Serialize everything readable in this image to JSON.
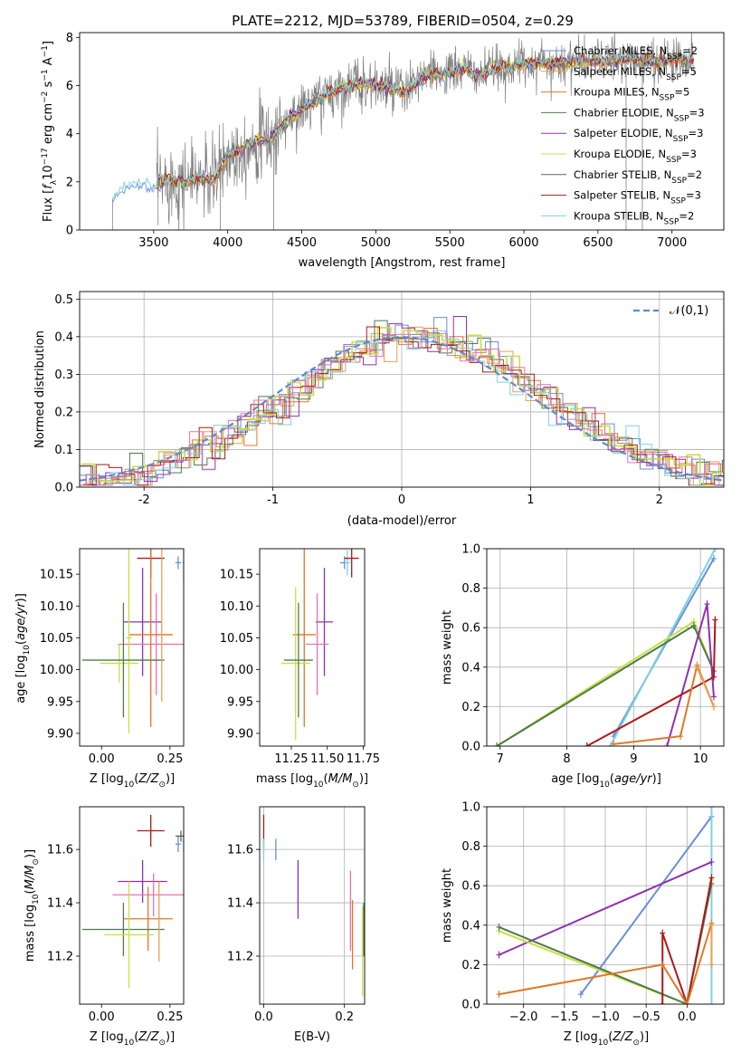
{
  "title": "PLATE=2212, MJD=53789, FIBERID=0504, z=0.29",
  "colors": {
    "chabrier_miles": "#6a8fd8",
    "salpeter_miles": "#e8a050",
    "kroupa_miles": "#e07828",
    "chabrier_elodie": "#4e7a4e",
    "salpeter_elodie": "#9030b0",
    "kroupa_elodie": "#c8e040",
    "chabrier_stelib": "#606060",
    "salpeter_stelib": "#b01818",
    "kroupa_stelib": "#7dd3e0",
    "pink": "#e870b0",
    "data": "#808080",
    "gaussian": "#5b8bd6"
  },
  "chart_data": [
    {
      "id": "spectrum",
      "type": "line",
      "title": "PLATE=2212, MJD=53789, FIBERID=0504, z=0.29",
      "xlabel": "wavelength [Angstrom, rest frame]",
      "ylabel": "Flux [f_λ 10^-17 erg cm^-2 s^-1 A^-1]",
      "xlim": [
        3000,
        7350
      ],
      "ylim": [
        0,
        8.2
      ],
      "xticks": [
        3500,
        4000,
        4500,
        5000,
        5500,
        6000,
        6500,
        7000
      ],
      "yticks": [
        0,
        2,
        4,
        6,
        8
      ],
      "legend_position": "top-right",
      "legend": [
        {
          "label": "Chabrier MILES, N_SSP=2",
          "color": "#6a8fd8"
        },
        {
          "label": "Salpeter MILES, N_SSP=5",
          "color": "#e8a050"
        },
        {
          "label": "Kroupa MILES, N_SSP=5",
          "color": "#e07828"
        },
        {
          "label": "Chabrier ELODIE, N_SSP=3",
          "color": "#4e7a4e"
        },
        {
          "label": "Salpeter ELODIE, N_SSP=3",
          "color": "#9030b0"
        },
        {
          "label": "Kroupa ELODIE, N_SSP=3",
          "color": "#c8e040"
        },
        {
          "label": "Chabrier STELIB, N_SSP=2",
          "color": "#606060"
        },
        {
          "label": "Salpeter STELIB, N_SSP=3",
          "color": "#b01818"
        },
        {
          "label": "Kroupa STELIB, N_SSP=2",
          "color": "#7dd3e0"
        }
      ],
      "continuum": [
        [
          3220,
          1.3
        ],
        [
          3300,
          1.75
        ],
        [
          3400,
          1.95
        ],
        [
          3500,
          1.8
        ],
        [
          3600,
          2.1
        ],
        [
          3700,
          2.0
        ],
        [
          3800,
          2.2
        ],
        [
          3900,
          2.0
        ],
        [
          4000,
          3.1
        ],
        [
          4100,
          3.4
        ],
        [
          4200,
          3.7
        ],
        [
          4300,
          3.8
        ],
        [
          4400,
          4.6
        ],
        [
          4500,
          5.0
        ],
        [
          4600,
          5.4
        ],
        [
          4700,
          5.7
        ],
        [
          4800,
          6.0
        ],
        [
          4900,
          6.1
        ],
        [
          5000,
          6.0
        ],
        [
          5100,
          5.9
        ],
        [
          5200,
          5.7
        ],
        [
          5300,
          6.3
        ],
        [
          5400,
          6.5
        ],
        [
          5500,
          6.5
        ],
        [
          5600,
          6.7
        ],
        [
          5700,
          6.4
        ],
        [
          5800,
          6.7
        ],
        [
          5900,
          6.8
        ],
        [
          6000,
          6.9
        ],
        [
          6100,
          7.0
        ],
        [
          6200,
          6.9
        ],
        [
          6300,
          7.0
        ],
        [
          6500,
          7.0
        ],
        [
          6700,
          7.1
        ],
        [
          6900,
          7.0
        ],
        [
          7100,
          7.1
        ]
      ]
    },
    {
      "id": "residuals",
      "type": "line",
      "xlabel": "(data-model)/error",
      "ylabel": "Normed distribution",
      "xlim": [
        -2.5,
        2.5
      ],
      "ylim": [
        0,
        0.52
      ],
      "xticks": [
        -2,
        -1,
        0,
        1,
        2
      ],
      "yticks": [
        0.0,
        0.1,
        0.2,
        0.3,
        0.4,
        0.5
      ],
      "grid": true,
      "legend_position": "top-right",
      "legend": [
        {
          "label": "𝒩(0,1)",
          "style": "dashed",
          "color": "#5b8bd6"
        }
      ],
      "bin_width": 0.1
    },
    {
      "id": "age_vs_Z",
      "type": "scatter",
      "xlabel": "Z [log10(Z/Z⊙)]",
      "ylabel": "age [log10(age/yr)]",
      "xlim": [
        -0.08,
        0.3
      ],
      "ylim": [
        9.88,
        10.19
      ],
      "xticks": [
        0.0,
        0.25
      ],
      "yticks": [
        9.9,
        9.95,
        10.0,
        10.05,
        10.1,
        10.15
      ],
      "points": [
        {
          "x": 0.28,
          "y": 10.168,
          "xerr": 0.01,
          "yerr": 0.01,
          "color": "#6a8fd8"
        },
        {
          "x": 0.3,
          "y": 10.168,
          "xerr": 0.005,
          "yerr": 0.03,
          "color": "#7dd3e0"
        },
        {
          "x": 0.18,
          "y": 10.175,
          "xerr": 0.05,
          "yerr": 0.03,
          "color": "#b01818"
        },
        {
          "x": 0.15,
          "y": 10.075,
          "xerr": 0.07,
          "yerr": 0.085,
          "color": "#9030b0"
        },
        {
          "x": 0.2,
          "y": 10.04,
          "xerr": 0.14,
          "yerr": 0.08,
          "color": "#e870b0"
        },
        {
          "x": 0.18,
          "y": 10.055,
          "xerr": 0.08,
          "yerr": 0.145,
          "color": "#e07828"
        },
        {
          "x": 0.1,
          "y": 10.05,
          "xerr": 0.01,
          "yerr": 0.15,
          "color": "#c8e040"
        },
        {
          "x": 0.065,
          "y": 10.01,
          "xerr": 0.07,
          "yerr": 0.03,
          "color": "#c8e040"
        },
        {
          "x": 0.08,
          "y": 10.015,
          "xerr": 0.15,
          "yerr": 0.09,
          "color": "#4e7a4e"
        },
        {
          "x": 0.22,
          "y": 10.07,
          "xerr": 0.0,
          "yerr": 0.12,
          "color": "#e8a050"
        }
      ]
    },
    {
      "id": "age_vs_mass",
      "type": "scatter",
      "xlabel": "mass [log10(M/M⊙)]",
      "xlim": [
        11.03,
        11.76
      ],
      "ylim": [
        9.88,
        10.19
      ],
      "xticks": [
        11.25,
        11.5,
        11.75
      ],
      "xtick_labels": [
        "11.25",
        "11.50",
        "11.75"
      ],
      "yticks": [
        9.9,
        9.95,
        10.0,
        10.05,
        10.1,
        10.15
      ],
      "points": [
        {
          "x": 11.62,
          "y": 10.168,
          "xerr": 0.03,
          "yerr": 0.01,
          "color": "#6a8fd8"
        },
        {
          "x": 11.64,
          "y": 10.168,
          "xerr": 0.02,
          "yerr": 0.02,
          "color": "#7dd3e0"
        },
        {
          "x": 11.67,
          "y": 10.175,
          "xerr": 0.05,
          "yerr": 0.03,
          "color": "#b01818"
        },
        {
          "x": 11.48,
          "y": 10.075,
          "xerr": 0.06,
          "yerr": 0.085,
          "color": "#9030b0"
        },
        {
          "x": 11.43,
          "y": 10.04,
          "xerr": 0.08,
          "yerr": 0.08,
          "color": "#e870b0"
        },
        {
          "x": 11.34,
          "y": 10.055,
          "xerr": 0.08,
          "yerr": 0.145,
          "color": "#e07828"
        },
        {
          "x": 11.28,
          "y": 10.01,
          "xerr": 0.1,
          "yerr": 0.12,
          "color": "#c8e040"
        },
        {
          "x": 11.3,
          "y": 10.015,
          "xerr": 0.1,
          "yerr": 0.09,
          "color": "#4e7a4e"
        }
      ]
    },
    {
      "id": "weight_vs_age",
      "type": "line",
      "xlabel": "age [log10(age/yr)]",
      "ylabel": "mass weight",
      "xlim": [
        6.8,
        10.35
      ],
      "ylim": [
        0,
        1
      ],
      "xticks": [
        7,
        8,
        9,
        10
      ],
      "yticks": [
        0.0,
        0.2,
        0.4,
        0.6,
        0.8,
        1.0
      ],
      "grid": true,
      "series": [
        {
          "color": "#6a8fd8",
          "x": [
            8.7,
            10.2
          ],
          "y": [
            0.05,
            0.95
          ]
        },
        {
          "color": "#7dd3e0",
          "x": [
            8.65,
            10.22
          ],
          "y": [
            0.0,
            1.0
          ]
        },
        {
          "color": "#c8e040",
          "x": [
            6.95,
            9.9,
            10.2
          ],
          "y": [
            0.0,
            0.63,
            0.38
          ]
        },
        {
          "color": "#4e7a4e",
          "x": [
            6.95,
            9.9,
            10.2
          ],
          "y": [
            0.0,
            0.61,
            0.38
          ]
        },
        {
          "color": "#9030b0",
          "x": [
            9.5,
            10.1,
            10.2
          ],
          "y": [
            0.0,
            0.72,
            0.25
          ]
        },
        {
          "color": "#b01818",
          "x": [
            8.3,
            10.2,
            10.22
          ],
          "y": [
            0.0,
            0.35,
            0.64
          ]
        },
        {
          "color": "#e07828",
          "x": [
            8.7,
            9.7,
            9.95,
            10.2
          ],
          "y": [
            0.01,
            0.05,
            0.41,
            0.2
          ]
        },
        {
          "color": "#e8a050",
          "x": [
            9.95,
            10.2
          ],
          "y": [
            0.4,
            0.2
          ]
        }
      ]
    },
    {
      "id": "mass_vs_Z",
      "type": "scatter",
      "xlabel": "Z [log10(Z/Z⊙)]",
      "ylabel": "mass [log10(M/M⊙)]",
      "xlim": [
        -0.08,
        0.3
      ],
      "ylim": [
        11.02,
        11.76
      ],
      "xticks": [
        0.0,
        0.25
      ],
      "yticks": [
        11.2,
        11.4,
        11.6
      ],
      "points": [
        {
          "x": 0.28,
          "y": 11.62,
          "xerr": 0.01,
          "yerr": 0.03,
          "color": "#6a8fd8"
        },
        {
          "x": 0.3,
          "y": 11.63,
          "xerr": 0.005,
          "yerr": 0.04,
          "color": "#7dd3e0"
        },
        {
          "x": 0.18,
          "y": 11.67,
          "xerr": 0.05,
          "yerr": 0.06,
          "color": "#b01818"
        },
        {
          "x": 0.29,
          "y": 11.65,
          "xerr": 0.02,
          "yerr": 0.02,
          "color": "#606060"
        },
        {
          "x": 0.15,
          "y": 11.48,
          "xerr": 0.09,
          "yerr": 0.08,
          "color": "#9030b0"
        },
        {
          "x": 0.19,
          "y": 11.43,
          "xerr": 0.15,
          "yerr": 0.08,
          "color": "#e870b0"
        },
        {
          "x": 0.17,
          "y": 11.34,
          "xerr": 0.09,
          "yerr": 0.12,
          "color": "#e07828"
        },
        {
          "x": 0.08,
          "y": 11.3,
          "xerr": 0.15,
          "yerr": 0.1,
          "color": "#4e7a4e"
        },
        {
          "x": 0.1,
          "y": 11.28,
          "xerr": 0.09,
          "yerr": 0.2,
          "color": "#c8e040"
        },
        {
          "x": 0.21,
          "y": 11.33,
          "xerr": 0.0,
          "yerr": 0.15,
          "color": "#e8a050"
        }
      ]
    },
    {
      "id": "ebv",
      "type": "scatter",
      "xlabel": "E(B-V)",
      "xlim": [
        -0.01,
        0.25
      ],
      "ylim": [
        11.02,
        11.76
      ],
      "xticks": [
        0.0,
        0.2
      ],
      "yticks": [
        11.2,
        11.4,
        11.6
      ],
      "grid": true,
      "points": [
        {
          "x": 0.0,
          "y": 11.67,
          "yerr": 0.06,
          "color": "#b01818"
        },
        {
          "x": 0.0,
          "y": 11.6,
          "yerr": 0.04,
          "color": "#7dd3e0"
        },
        {
          "x": 0.03,
          "y": 11.6,
          "yerr": 0.04,
          "color": "#6a8fd8"
        },
        {
          "x": 0.085,
          "y": 11.45,
          "yerr": 0.11,
          "color": "#9030b0"
        },
        {
          "x": 0.215,
          "y": 11.37,
          "yerr": 0.15,
          "color": "#e870b0"
        },
        {
          "x": 0.22,
          "y": 11.28,
          "yerr": 0.13,
          "color": "#e07828"
        },
        {
          "x": 0.245,
          "y": 11.22,
          "yerr": 0.17,
          "color": "#c8e040"
        },
        {
          "x": 0.248,
          "y": 11.3,
          "yerr": 0.1,
          "color": "#4e7a4e"
        }
      ]
    },
    {
      "id": "weight_vs_Z",
      "type": "line",
      "xlabel": "Z [log10(Z/Z⊙)]",
      "ylabel": "mass weight",
      "xlim": [
        -2.45,
        0.45
      ],
      "ylim": [
        0,
        1
      ],
      "xticks": [
        -2.0,
        -1.5,
        -1.0,
        -0.5,
        0.0
      ],
      "yticks": [
        0.0,
        0.2,
        0.4,
        0.6,
        0.8,
        1.0
      ],
      "grid": true,
      "series": [
        {
          "color": "#6a8fd8",
          "x": [
            -1.3,
            0.3
          ],
          "y": [
            0.05,
            0.95
          ]
        },
        {
          "color": "#7dd3e0",
          "x": [
            0.3,
            0.3
          ],
          "y": [
            0.0,
            1.0
          ]
        },
        {
          "color": "#9030b0",
          "x": [
            -2.3,
            0.3
          ],
          "y": [
            0.25,
            0.72
          ]
        },
        {
          "color": "#c8e040",
          "x": [
            -2.3,
            0.0,
            0.3
          ],
          "y": [
            0.37,
            0.0,
            0.63
          ]
        },
        {
          "color": "#4e7a4e",
          "x": [
            -2.3,
            0.0,
            0.3
          ],
          "y": [
            0.39,
            0.0,
            0.61
          ]
        },
        {
          "color": "#b01818",
          "x": [
            -0.3,
            -0.3,
            0.0,
            0.3
          ],
          "y": [
            0.0,
            0.36,
            0.0,
            0.64
          ]
        },
        {
          "color": "#e07828",
          "x": [
            -2.3,
            -0.3,
            0.0,
            0.3
          ],
          "y": [
            0.05,
            0.2,
            0.0,
            0.41
          ]
        },
        {
          "color": "#e8a050",
          "x": [
            0.3,
            0.3
          ],
          "y": [
            0.2,
            0.4
          ]
        }
      ]
    }
  ]
}
